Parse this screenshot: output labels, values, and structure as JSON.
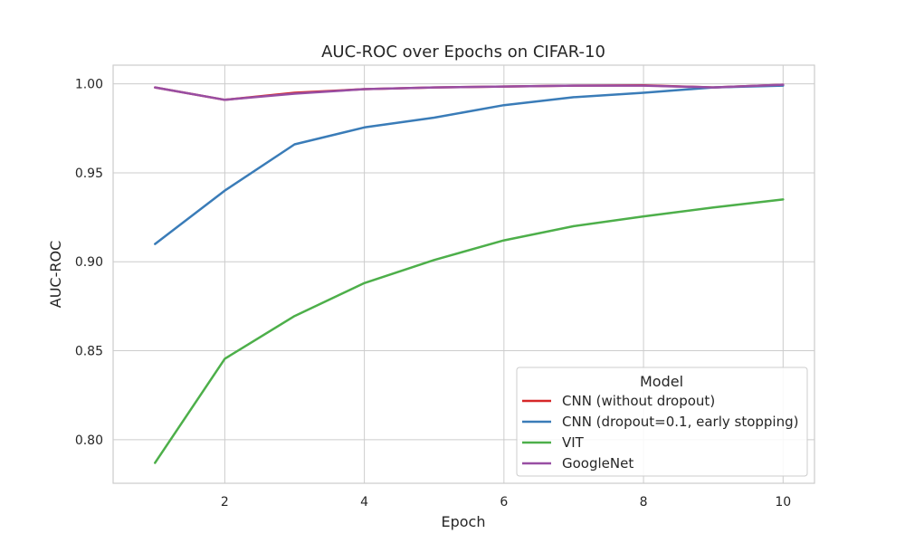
{
  "chart_data": {
    "type": "line",
    "title": "AUC-ROC over Epochs on CIFAR-10",
    "xlabel": "Epoch",
    "ylabel": "AUC-ROC",
    "xlim": [
      0.4,
      10.45
    ],
    "ylim": [
      0.7755,
      1.0105
    ],
    "xticks": [
      2,
      4,
      6,
      8,
      10
    ],
    "yticks": [
      0.8,
      0.85,
      0.9,
      0.95,
      1.0
    ],
    "ytick_labels": [
      "0.80",
      "0.85",
      "0.90",
      "0.95",
      "1.00"
    ],
    "grid": true,
    "legend": {
      "title": "Model",
      "position": "lower-right"
    },
    "x": [
      1,
      2,
      3,
      4,
      5,
      6,
      7,
      8,
      9,
      10
    ],
    "series": [
      {
        "name": "CNN (without dropout)",
        "color": "#d62728",
        "values": [
          0.998,
          0.991,
          0.995,
          0.997,
          0.998,
          0.9985,
          0.999,
          0.9992,
          0.998,
          0.9995
        ]
      },
      {
        "name": "CNN (dropout=0.1, early stopping)",
        "color": "#3a7cb8",
        "values": [
          0.91,
          0.94,
          0.966,
          0.9755,
          0.981,
          0.988,
          0.9925,
          0.995,
          0.998,
          0.999
        ]
      },
      {
        "name": "VIT",
        "color": "#4daf4a",
        "values": [
          0.787,
          0.8455,
          0.8695,
          0.888,
          0.901,
          0.912,
          0.92,
          0.9255,
          0.9305,
          0.935
        ]
      },
      {
        "name": "GoogleNet",
        "color": "#984ea3",
        "values": [
          0.998,
          0.991,
          0.9945,
          0.997,
          0.998,
          0.9985,
          0.999,
          0.999,
          0.998,
          0.9995
        ]
      }
    ]
  }
}
